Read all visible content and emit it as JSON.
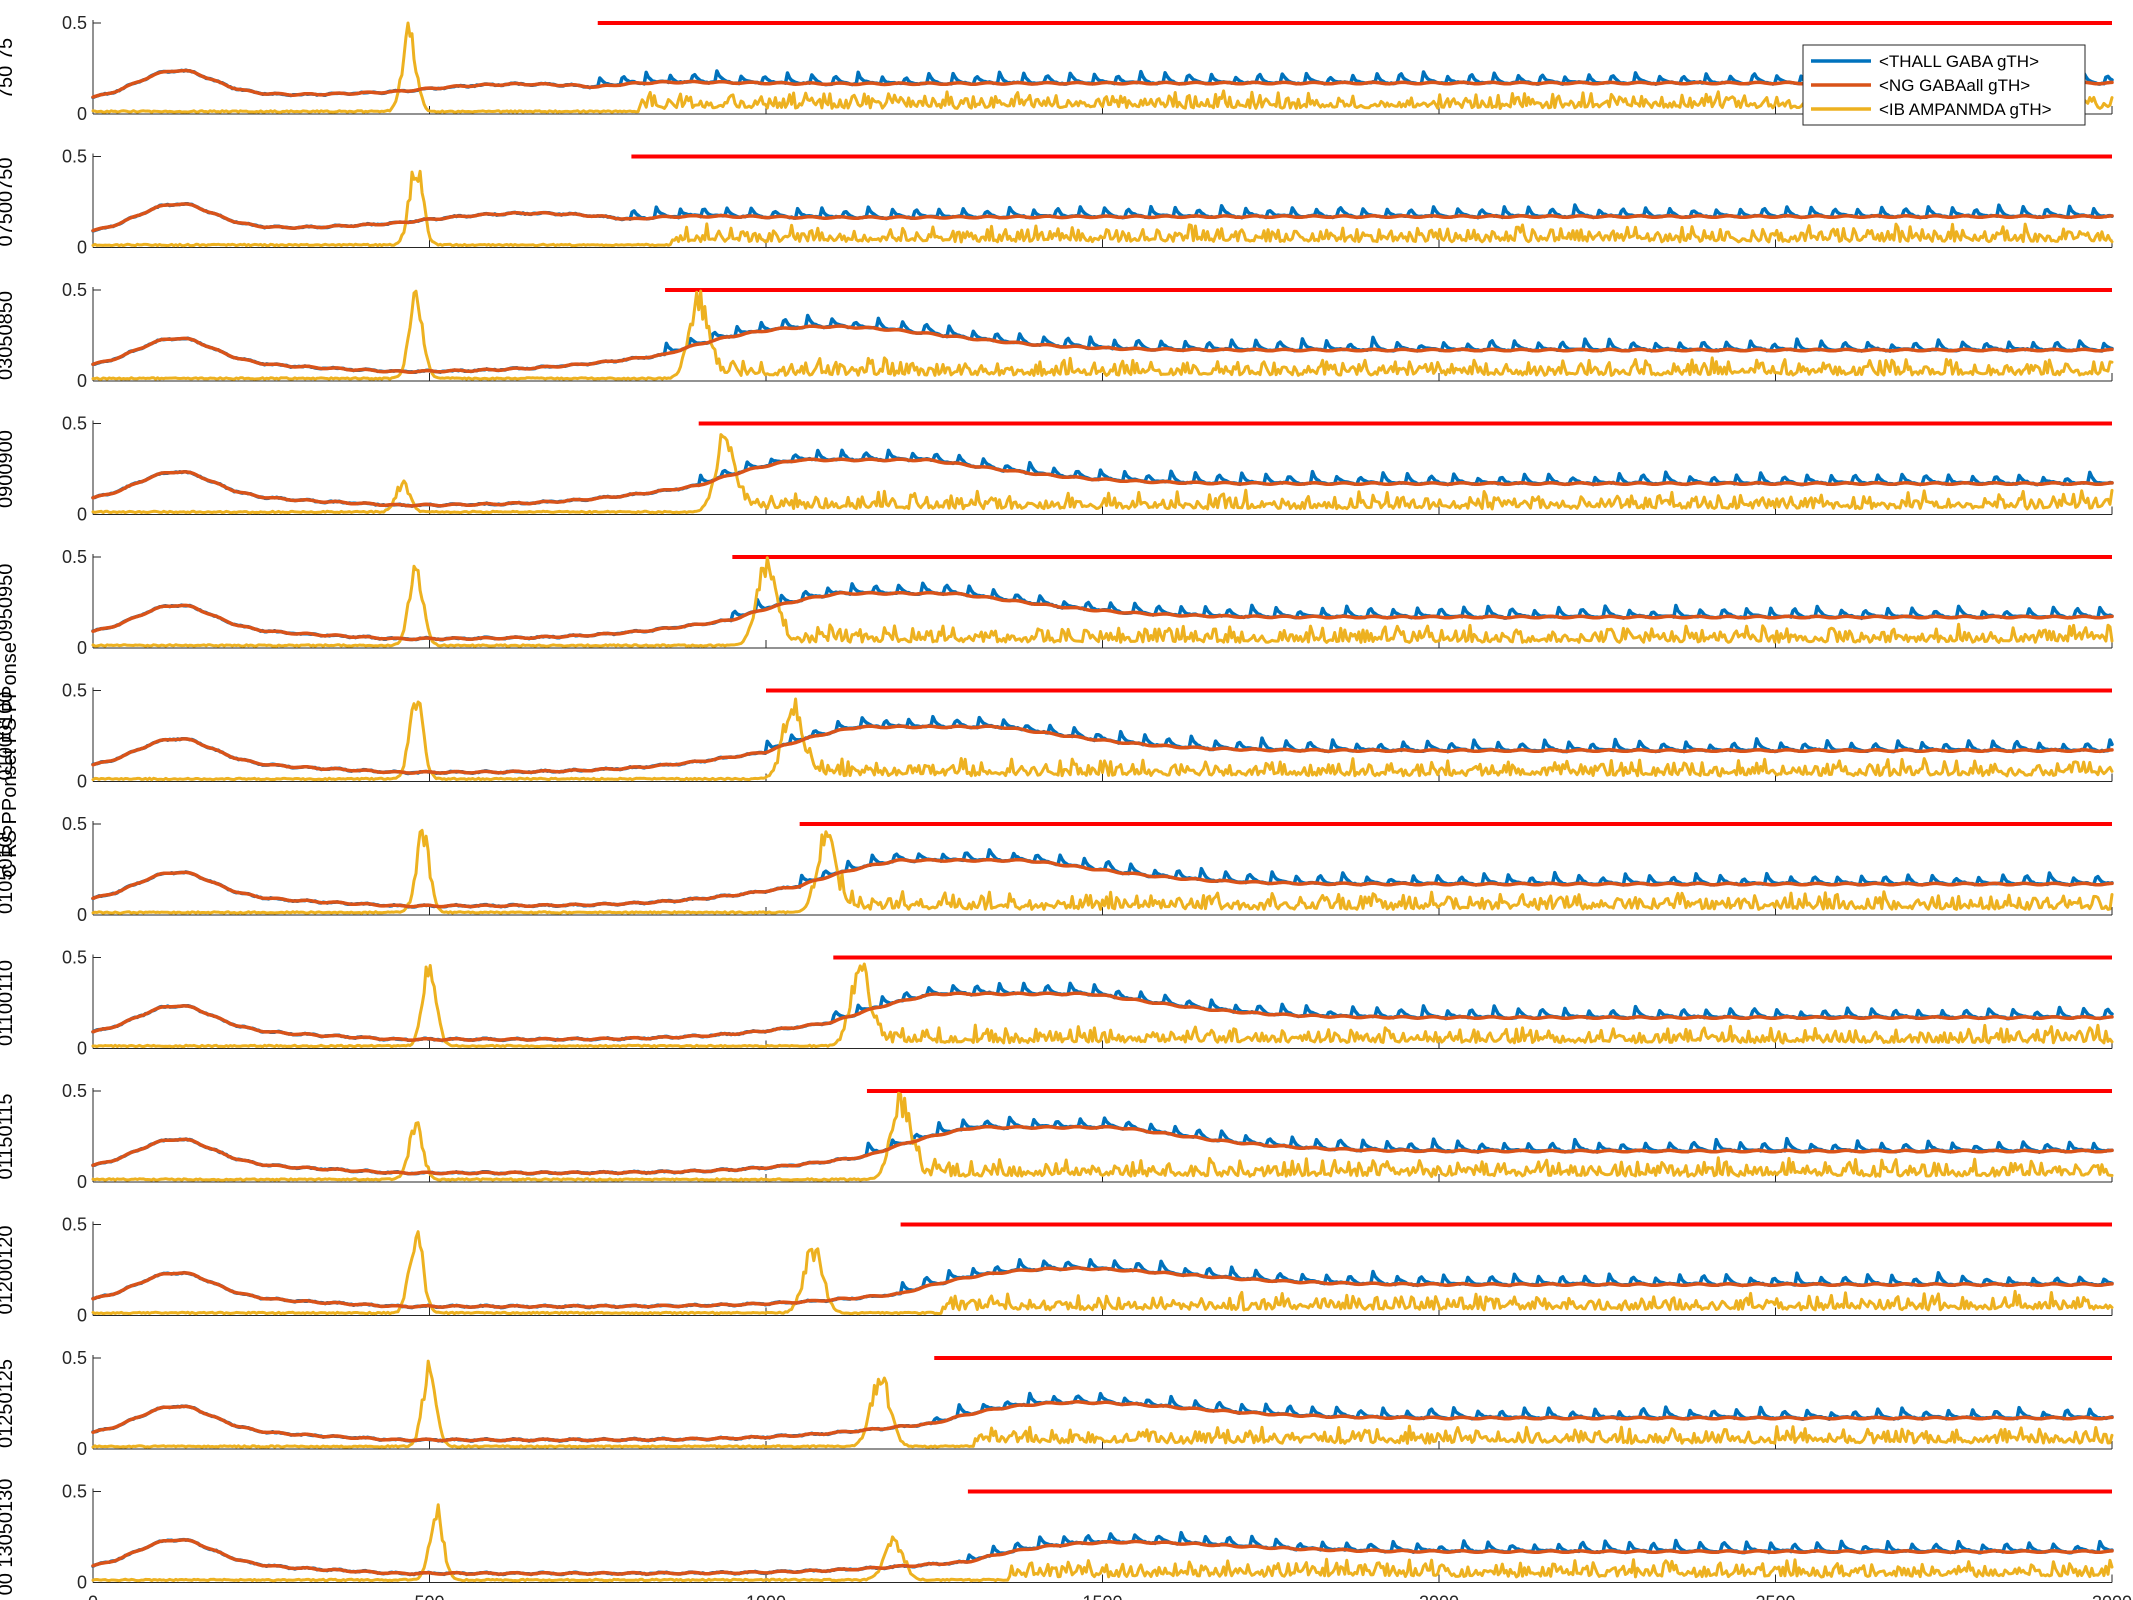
{
  "chart_data": {
    "type": "line",
    "figure_ylabel": "C RS PPonset FS PPonse",
    "x_range": [
      0,
      3000
    ],
    "x_ticks": [
      0,
      500,
      1000,
      1500,
      2000,
      2500,
      3000
    ],
    "x_tick_labels": [
      "0",
      "500",
      "1000",
      "1500",
      "2000",
      "2500",
      "3000"
    ],
    "y_range": [
      0,
      0.5
    ],
    "y_ticks": [
      0,
      0.5
    ],
    "y_tick_labels": [
      "0",
      "0.5"
    ],
    "grid": false,
    "legend": {
      "placement": "top-right",
      "entries": [
        "<THALL GABA gTH>",
        "<NG GABAall gTH>",
        "<IB AMPANMDA gTH>"
      ]
    },
    "colors": {
      "THALL_GABA": "#0072BD",
      "NG_GABAall": "#D95319",
      "IB_AMPANMDA": "#EDB120",
      "stimulus_bar": "#FF0000"
    },
    "panels": [
      {
        "index": 1,
        "ylabel_fragment": "750 75",
        "stim_start": 750,
        "burst1": 470,
        "burst1_amp": 0.5,
        "burst2": null,
        "burst2_amp": 0,
        "hump_center": 640,
        "hump_amp": 0.19
      },
      {
        "index": 2,
        "ylabel_fragment": "07500750",
        "stim_start": 800,
        "burst1": 480,
        "burst1_amp": 0.5,
        "burst2": null,
        "burst2_amp": 0,
        "hump_center": 650,
        "hump_amp": 0.23
      },
      {
        "index": 3,
        "ylabel_fragment": "03050850",
        "stim_start": 850,
        "burst1": 480,
        "burst1_amp": 0.5,
        "burst2": 900,
        "burst2_amp": 0.5,
        "hump_center": 1050,
        "hump_amp": 0.26
      },
      {
        "index": 4,
        "ylabel_fragment": "0900900",
        "stim_start": 900,
        "burst1": 460,
        "burst1_amp": 0.18,
        "burst2": 940,
        "burst2_amp": 0.5,
        "hump_center": 1100,
        "hump_amp": 0.3
      },
      {
        "index": 5,
        "ylabel_fragment": "0950950",
        "stim_start": 950,
        "burst1": 480,
        "burst1_amp": 0.5,
        "burst2": 1000,
        "burst2_amp": 0.5,
        "hump_center": 1150,
        "hump_amp": 0.29
      },
      {
        "index": 6,
        "ylabel_fragment": "01000100",
        "stim_start": 1000,
        "burst1": 480,
        "burst1_amp": 0.5,
        "burst2": 1040,
        "burst2_amp": 0.5,
        "hump_center": 1200,
        "hump_amp": 0.31
      },
      {
        "index": 7,
        "ylabel_fragment": "01050105",
        "stim_start": 1050,
        "burst1": 490,
        "burst1_amp": 0.5,
        "burst2": 1090,
        "burst2_amp": 0.5,
        "hump_center": 1250,
        "hump_amp": 0.3
      },
      {
        "index": 8,
        "ylabel_fragment": "01100110",
        "stim_start": 1100,
        "burst1": 500,
        "burst1_amp": 0.5,
        "burst2": 1140,
        "burst2_amp": 0.5,
        "hump_center": 1330,
        "hump_amp": 0.31
      },
      {
        "index": 9,
        "ylabel_fragment": "01150115",
        "stim_start": 1150,
        "burst1": 480,
        "burst1_amp": 0.35,
        "burst2": 1200,
        "burst2_amp": 0.5,
        "hump_center": 1380,
        "hump_amp": 0.3
      },
      {
        "index": 10,
        "ylabel_fragment": "01200120",
        "stim_start": 1200,
        "burst1": 480,
        "burst1_amp": 0.5,
        "burst2": 1070,
        "burst2_amp": 0.4,
        "hump_center": 1400,
        "hump_amp": 0.19
      },
      {
        "index": 11,
        "ylabel_fragment": "01250125",
        "stim_start": 1250,
        "burst1": 500,
        "burst1_amp": 0.5,
        "burst2": 1170,
        "burst2_amp": 0.43,
        "hump_center": 1400,
        "hump_amp": 0.2
      },
      {
        "index": 12,
        "ylabel_fragment": "00 13050130",
        "stim_start": 1300,
        "burst1": 510,
        "burst1_amp": 0.45,
        "burst2": 1190,
        "burst2_amp": 0.25,
        "hump_center": 1450,
        "hump_amp": 0.14
      }
    ]
  }
}
